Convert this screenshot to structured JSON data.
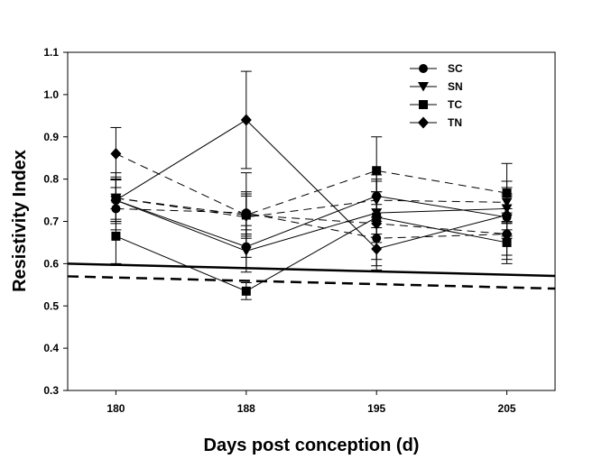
{
  "chart_data": {
    "type": "line",
    "xlabel": "Days post conception (d)",
    "ylabel": "Resistivity Index",
    "x_categories": [
      "180",
      "188",
      "195",
      "205"
    ],
    "xlim_categories": [
      -0.37,
      3.37
    ],
    "ylim": [
      0.3,
      1.1
    ],
    "yticks": [
      "0.3",
      "0.4",
      "0.5",
      "0.6",
      "0.7",
      "0.8",
      "0.9",
      "1.0",
      "1.1"
    ],
    "grid": false,
    "legend": {
      "placement": "top-right",
      "entries": [
        {
          "name": "SC",
          "marker": "circle"
        },
        {
          "name": "SN",
          "marker": "triangle-down"
        },
        {
          "name": "TC",
          "marker": "square"
        },
        {
          "name": "TN",
          "marker": "diamond"
        }
      ]
    },
    "series": [
      {
        "name": "SC",
        "marker": "circle",
        "line": "solid",
        "values": [
          0.75,
          0.64,
          0.76,
          0.71
        ],
        "err": [
          0.05,
          0.05,
          0.05,
          0.05
        ]
      },
      {
        "name": "SC",
        "marker": "circle",
        "line": "dashed",
        "values": [
          0.73,
          0.72,
          0.66,
          0.67
        ],
        "err": [
          0.05,
          0.05,
          0.05,
          0.05
        ]
      },
      {
        "name": "SN",
        "marker": "triangle-down",
        "line": "solid",
        "values": [
          0.75,
          0.63,
          0.72,
          0.73
        ],
        "err": [
          0.05,
          0.05,
          0.05,
          0.05
        ]
      },
      {
        "name": "SN",
        "marker": "triangle-down",
        "line": "dashed",
        "values": [
          0.755,
          0.71,
          0.75,
          0.745
        ],
        "err": [
          0.05,
          0.05,
          0.05,
          0.05
        ]
      },
      {
        "name": "TC",
        "marker": "square",
        "line": "solid",
        "values": [
          0.665,
          0.535,
          0.71,
          0.65
        ],
        "err": [
          0.065,
          0.02,
          0.06,
          0.05
        ]
      },
      {
        "name": "TC",
        "marker": "square",
        "line": "dashed",
        "values": [
          0.755,
          0.715,
          0.82,
          0.767
        ],
        "err": [
          0.06,
          0.05,
          0.08,
          0.07
        ]
      },
      {
        "name": "TN",
        "marker": "diamond",
        "line": "solid",
        "values": [
          0.75,
          0.94,
          0.635,
          0.715
        ],
        "err": [
          0.05,
          0.115,
          0.05,
          0.05
        ]
      },
      {
        "name": "TN",
        "marker": "diamond",
        "line": "dashed",
        "values": [
          0.86,
          0.715,
          0.695,
          0.67
        ],
        "err": [
          0.062,
          0.1,
          0.1,
          0.06
        ]
      }
    ],
    "reference_lines": [
      {
        "style": "solid",
        "x_start": -0.37,
        "x_end": 3.37,
        "y_start": 0.6,
        "y_end": 0.571
      },
      {
        "style": "dashed",
        "x_start": -0.37,
        "x_end": 3.37,
        "y_start": 0.57,
        "y_end": 0.541
      }
    ]
  }
}
